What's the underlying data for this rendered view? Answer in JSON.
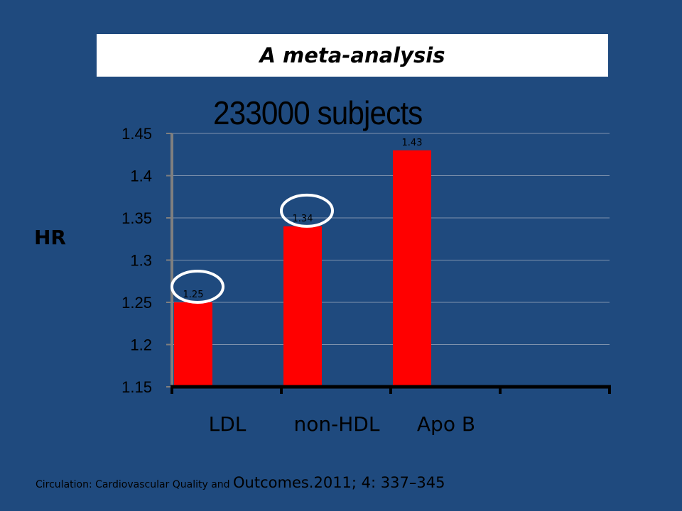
{
  "slide": {
    "title": "A meta-analysis",
    "subtitle": "233000 subjects",
    "citation_small": "Circulation: Cardiovascular Quality and ",
    "citation_large": "Outcomes.2011; 4: 337–345"
  },
  "chart_data": {
    "type": "bar",
    "categories": [
      "LDL",
      "non-HDL",
      "Apo B"
    ],
    "values": [
      1.25,
      1.34,
      1.43
    ],
    "data_labels": [
      "1.25",
      "1.34",
      "1.43"
    ],
    "ylabel": "HR",
    "ylim": [
      1.15,
      1.45
    ],
    "yticks": [
      1.15,
      1.2,
      1.25,
      1.3,
      1.35,
      1.4,
      1.45
    ],
    "ytick_labels": [
      "1.15",
      "1.2",
      "1.25",
      "1.3",
      "1.35",
      "1.4",
      "1.45"
    ],
    "grid": true,
    "bar_color": "#ff0000",
    "highlighted_categories": [
      "LDL",
      "non-HDL"
    ],
    "highlight_color": "#ffffff"
  }
}
